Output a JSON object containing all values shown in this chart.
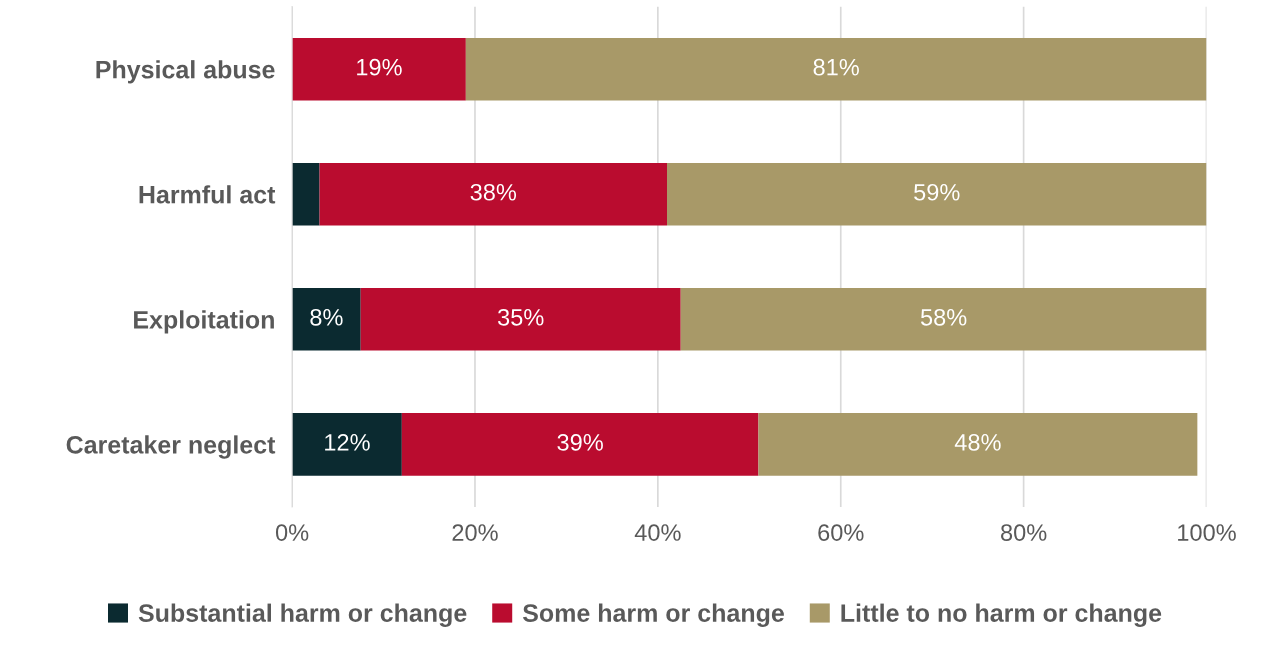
{
  "chart_data": {
    "type": "bar",
    "orientation": "horizontal",
    "stacked": true,
    "categories": [
      "Physical abuse",
      "Harmful act",
      "Exploitation",
      "Caretaker neglect"
    ],
    "series": [
      {
        "name": "Substantial harm or change",
        "color": "#0b2a30",
        "values": [
          null,
          3,
          7.5,
          12
        ],
        "value_labels": [
          null,
          null,
          "8%",
          "12%"
        ]
      },
      {
        "name": "Some harm or change",
        "color": "#ba0c2f",
        "values": [
          19,
          38,
          35,
          39
        ],
        "value_labels": [
          "19%",
          "38%",
          "35%",
          "39%"
        ]
      },
      {
        "name": "Little to no harm or change",
        "color": "#a89968",
        "values": [
          81,
          59,
          57.5,
          48
        ],
        "value_labels": [
          "81%",
          "59%",
          "58%",
          "48%"
        ]
      }
    ],
    "xlim": [
      0,
      100
    ],
    "xticks": [
      {
        "value": 0,
        "label": "0%"
      },
      {
        "value": 20,
        "label": "20%"
      },
      {
        "value": 40,
        "label": "40%"
      },
      {
        "value": 60,
        "label": "60%"
      },
      {
        "value": 80,
        "label": "80%"
      },
      {
        "value": 100,
        "label": "100%"
      }
    ],
    "grid": "x",
    "legend": "bottom"
  }
}
